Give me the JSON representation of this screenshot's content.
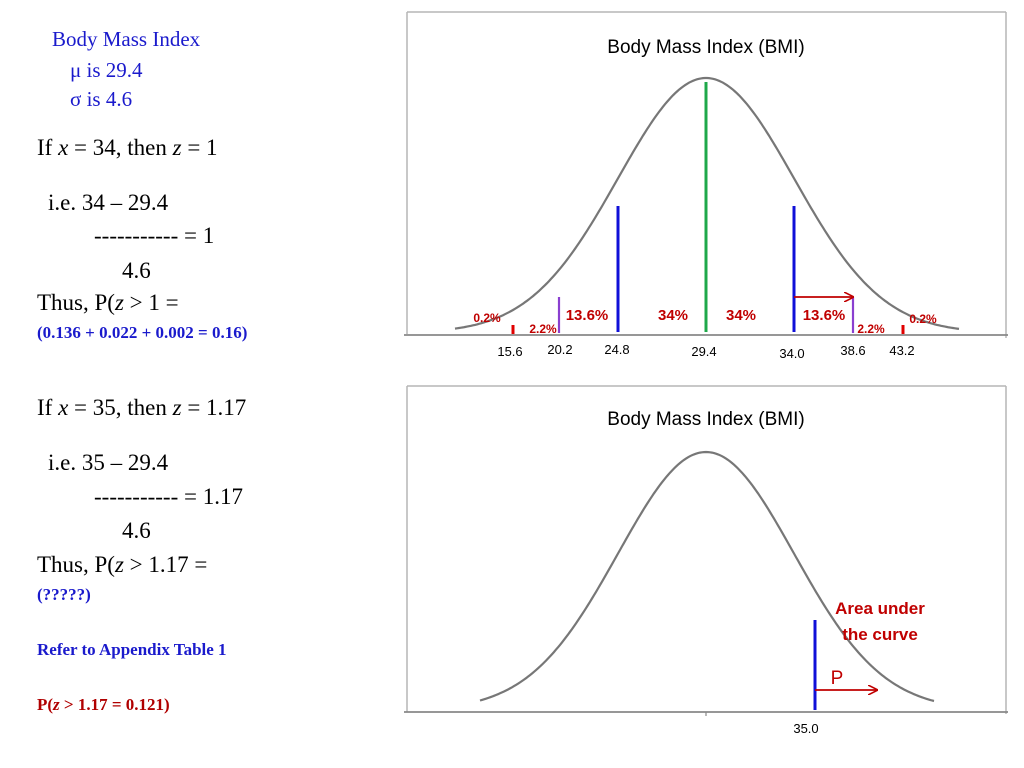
{
  "left": {
    "intro": {
      "title": "Body Mass Index",
      "mu": "μ is 29.4",
      "sigma": "σ is 4.6"
    },
    "ex1": {
      "if_pre": "If ",
      "if_x": "x",
      "if_mid": " = 34, then ",
      "if_z": "z",
      "if_post": " = 1",
      "ie_line": "i.e. 34 – 29.4",
      "dash_line": "-----------  = 1",
      "denom": "4.6",
      "thus_pre": "Thus, P(",
      "thus_z": "z",
      "thus_post": " > 1 =",
      "answer": "(0.136 + 0.022 + 0.002 = 0.16)"
    },
    "ex2": {
      "if_pre": "If ",
      "if_x": "x",
      "if_mid": " = 35, then ",
      "if_z": "z",
      "if_post": " = 1.17",
      "ie_line": "i.e. 35 – 29.4",
      "dash_line": "-----------  = 1.17",
      "denom": "4.6",
      "thus_pre": "Thus, P(",
      "thus_z": "z",
      "thus_post": " > 1.17 =",
      "answer": "(?????)",
      "refer": "Refer to Appendix Table 1",
      "result_pre": "P(",
      "result_z": "z",
      "result_post": " > 1.17 = 0.121)"
    }
  },
  "colors": {
    "blue_text": "#1a1acc",
    "red_text": "#b00000",
    "green_line": "#1fa84a",
    "blue_line": "#1010d8",
    "purple_line": "#8a3fd0",
    "curve": "#777777"
  },
  "chart_data": [
    {
      "type": "diagram",
      "title": "Body Mass Index (BMI)",
      "mean": 29.4,
      "sd": 4.6,
      "x_ticks": [
        "15.6",
        "20.2",
        "24.8",
        "29.4",
        "34.0",
        "38.6",
        "43.2"
      ],
      "region_labels": [
        "0.2%",
        "2.2%",
        "13.6%",
        "34%",
        "34%",
        "13.6%",
        "2.2%",
        "0.2%"
      ],
      "arrow": "from 34.0 pointing right"
    },
    {
      "type": "diagram",
      "title": "Body Mass Index (BMI)",
      "mean": 29.4,
      "sd": 4.6,
      "marker_value": "35.0",
      "annotation_line1": "Area under",
      "annotation_line2": "the curve",
      "arrow_label": "P"
    }
  ]
}
